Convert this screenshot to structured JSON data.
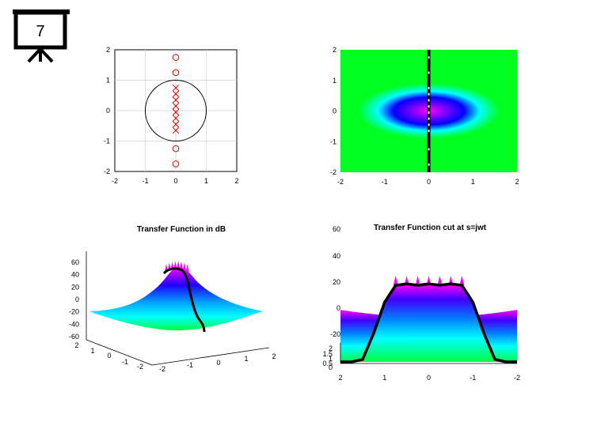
{
  "slide": {
    "number": "7",
    "icon": "presentation-easel-icon"
  },
  "colors": {
    "pole_zero": "#e00000",
    "unit_circle": "#000000",
    "grid": "#d0d0d0",
    "colormap": [
      "#00ff20",
      "#00ffff",
      "#0000ff",
      "#ff00ff"
    ]
  },
  "chart_data": [
    {
      "type": "scatter",
      "id": "pole-zero-plot",
      "title": "",
      "xlim": [
        -2,
        2
      ],
      "ylim": [
        -2,
        2
      ],
      "xticks": [
        "-2",
        "-1",
        "0",
        "1",
        "2"
      ],
      "yticks": [
        "2",
        "1",
        "0",
        "-1",
        "-2"
      ],
      "grid": true,
      "unit_circle": true,
      "zeros": [
        [
          0,
          1.75
        ],
        [
          0,
          1.25
        ],
        [
          0,
          -1.25
        ],
        [
          0,
          -1.75
        ]
      ],
      "poles": [
        [
          0,
          0.75
        ],
        [
          0,
          0.55
        ],
        [
          0,
          0.35
        ],
        [
          0,
          0.15
        ],
        [
          0,
          -0.05
        ],
        [
          0,
          -0.25
        ],
        [
          0,
          -0.45
        ],
        [
          0,
          -0.65
        ]
      ]
    },
    {
      "type": "heatmap",
      "id": "magnitude-map",
      "title": "",
      "xlim": [
        -2,
        2
      ],
      "ylim": [
        -2,
        2
      ],
      "xticks": [
        "-2",
        "-1",
        "0",
        "1",
        "2"
      ],
      "yticks": [
        "2",
        "1",
        "0",
        "-1",
        "-2"
      ],
      "grid": false,
      "colorscale": [
        "#00ff20",
        "#00ffff",
        "#0000ff",
        "#ff00ff"
      ],
      "jw_axis_line": {
        "x": 0
      }
    },
    {
      "type": "surface",
      "id": "transfer-function-3d",
      "title": "Transfer Function in dB",
      "zticks": [
        "60",
        "40",
        "20",
        "0",
        "-20",
        "-40",
        "-60"
      ],
      "yticks": [
        "2",
        "1",
        "0",
        "-1",
        "-2"
      ],
      "xticks": [
        "-2",
        "-1",
        "0",
        "1",
        "2"
      ],
      "zlim": [
        -60,
        60
      ]
    },
    {
      "type": "surface",
      "id": "transfer-function-cut",
      "title": "Transfer Function cut at s=jwt",
      "zticks": [
        "60",
        "40",
        "20",
        "0",
        "-20"
      ],
      "yticks": [
        "2",
        "1.5",
        "1",
        "0.5",
        "0"
      ],
      "xticks": [
        "2",
        "1",
        "0",
        "-1",
        "-2"
      ],
      "cut_profile_db": [
        [
          2.0,
          -45
        ],
        [
          1.75,
          -42
        ],
        [
          1.5,
          -40
        ],
        [
          1.25,
          -20
        ],
        [
          1.0,
          4
        ],
        [
          0.75,
          17
        ],
        [
          0.5,
          18
        ],
        [
          0.25,
          17
        ],
        [
          0.0,
          18
        ],
        [
          -0.25,
          17
        ],
        [
          -0.5,
          18
        ],
        [
          -0.75,
          17
        ],
        [
          -1.0,
          4
        ],
        [
          -1.25,
          -20
        ],
        [
          -1.5,
          -40
        ],
        [
          -1.75,
          -42
        ],
        [
          -2.0,
          -45
        ]
      ],
      "zlim": [
        -20,
        60
      ]
    }
  ]
}
